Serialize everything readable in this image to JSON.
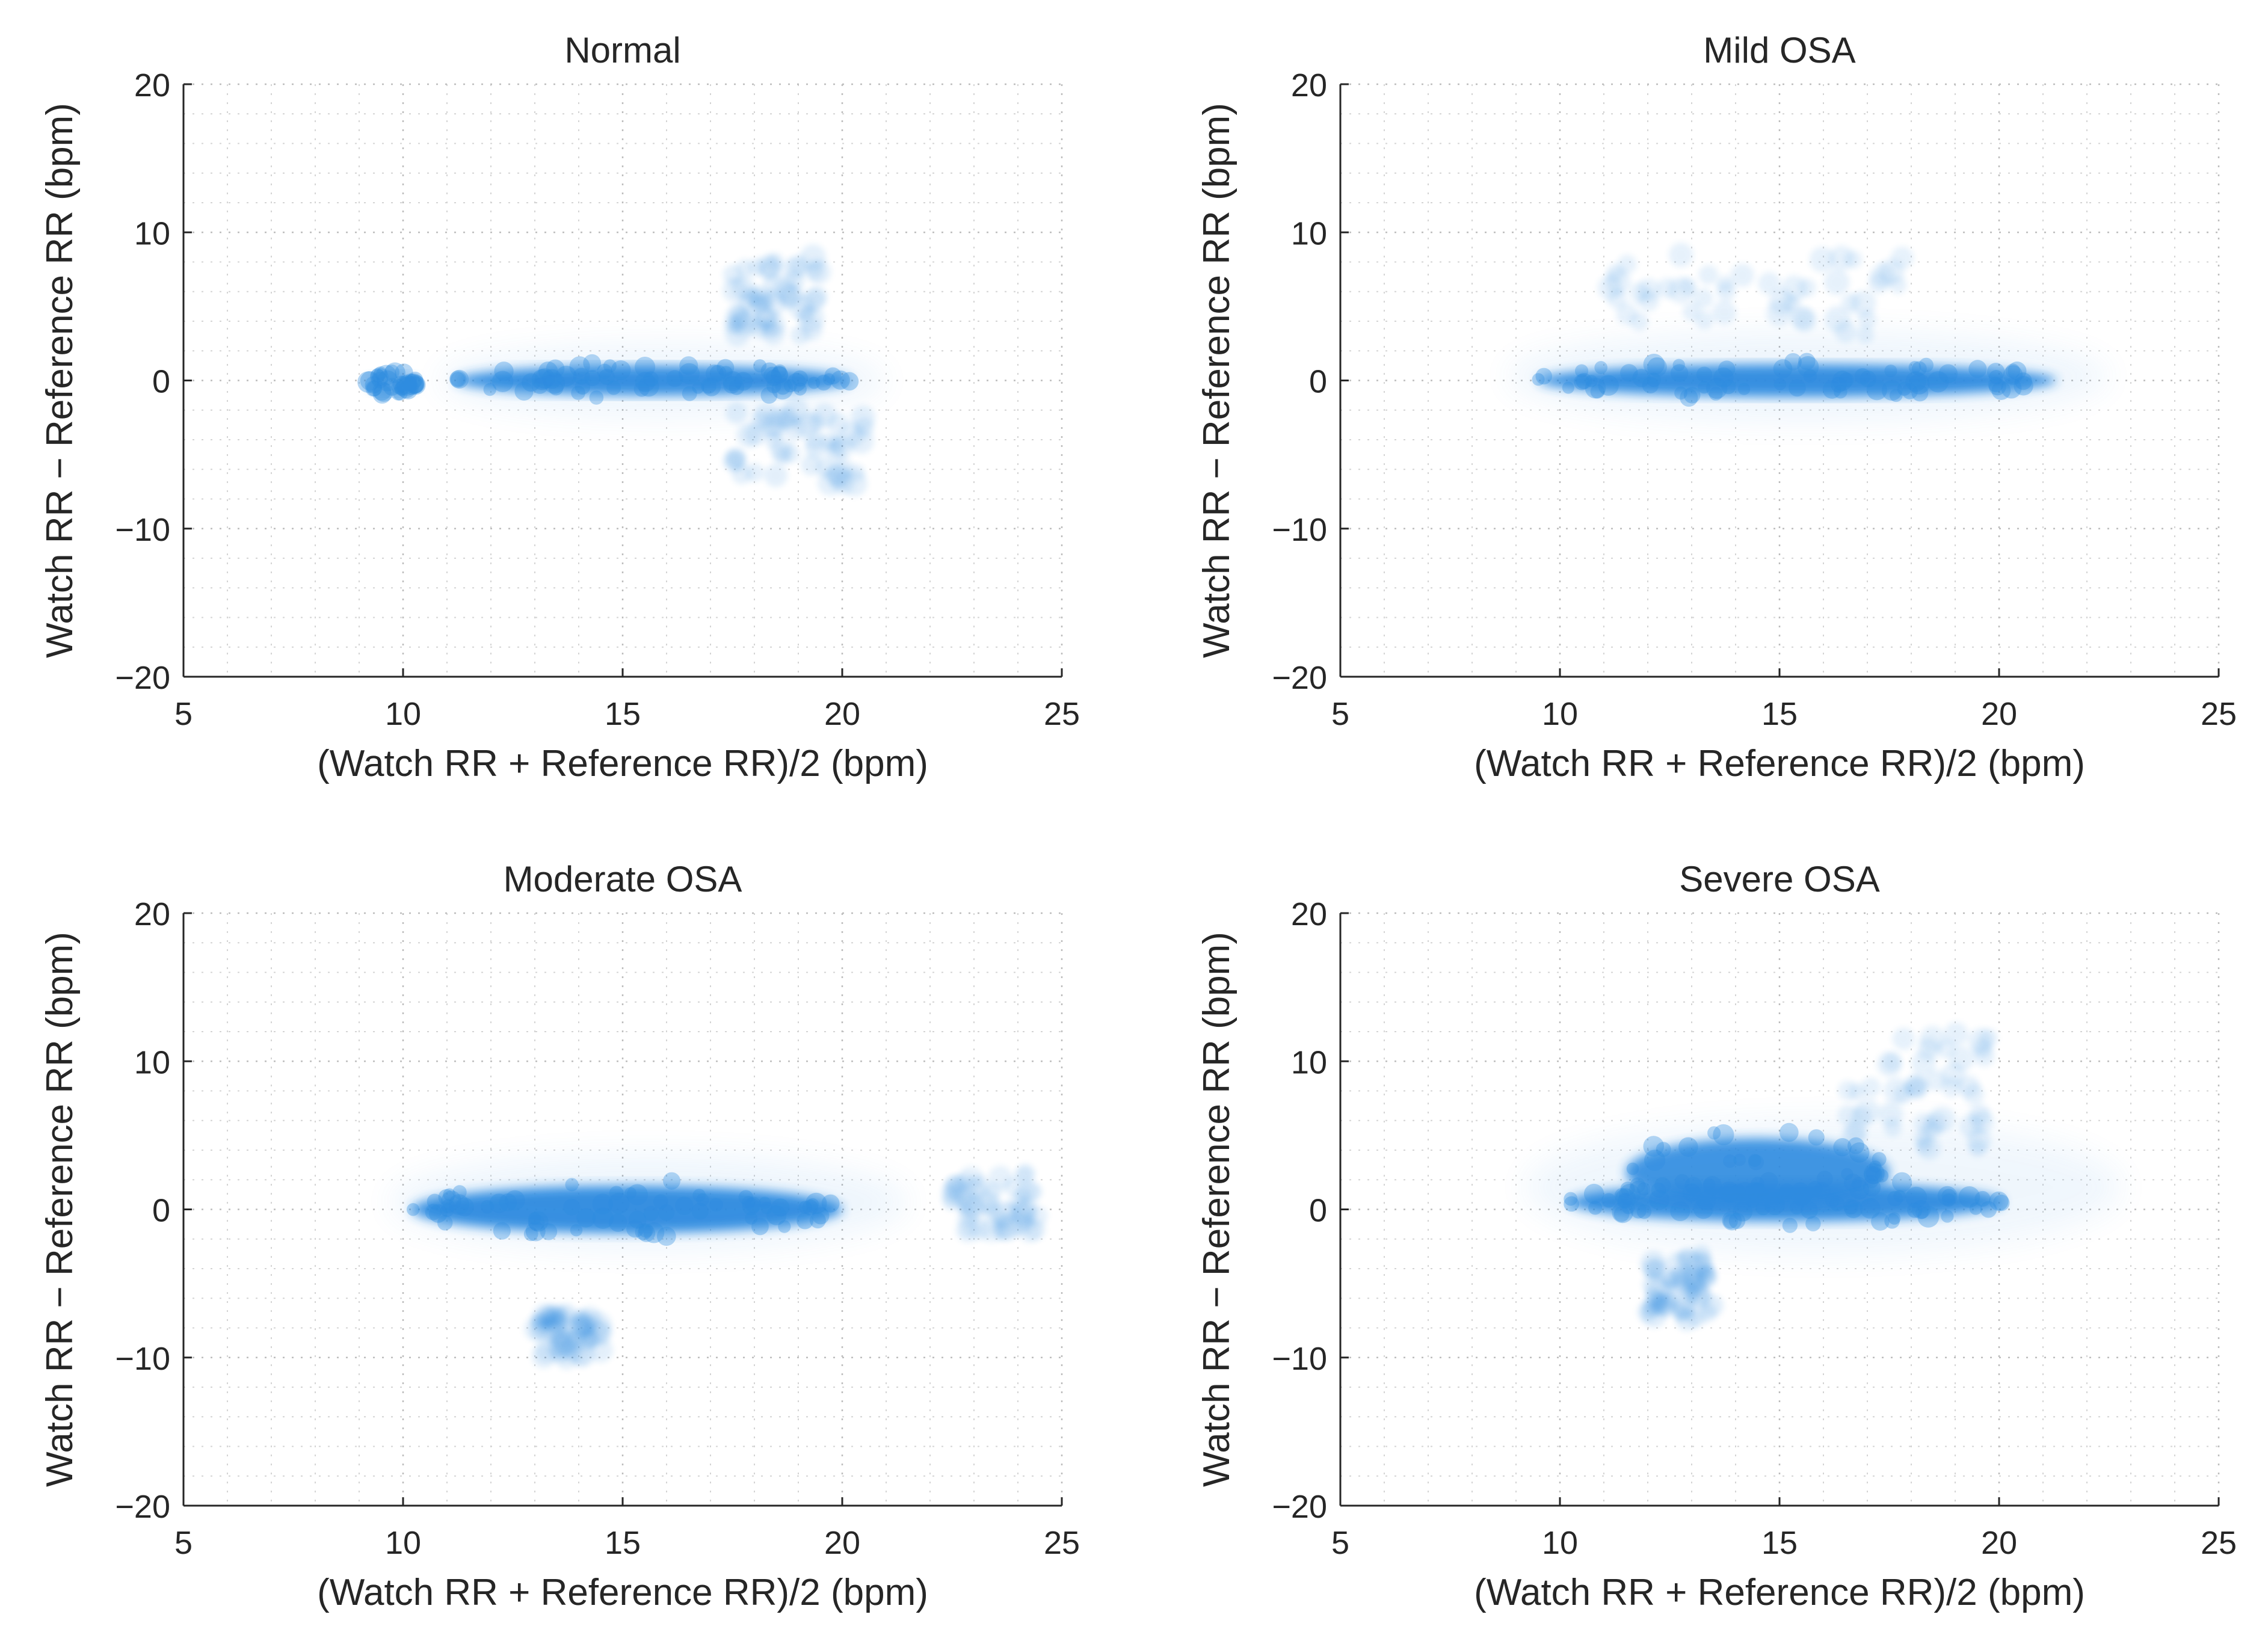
{
  "figure": {
    "colors": {
      "marker": "#2e8be0",
      "axis": "#262626",
      "grid": "#bdbdbd"
    }
  },
  "chart_data": [
    {
      "type": "scatter",
      "title": "Normal",
      "xlabel": "(Watch RR + Reference RR)/2 (bpm)",
      "ylabel": "Watch RR − Reference RR (bpm)",
      "xlim": [
        5,
        25
      ],
      "ylim": [
        -20,
        20
      ],
      "xticks": [
        5,
        10,
        15,
        20,
        25
      ],
      "yticks": [
        -20,
        -10,
        0,
        10,
        20
      ],
      "xtick_labels": [
        "5",
        "10",
        "15",
        "20",
        "25"
      ],
      "ytick_labels": [
        "−20",
        "−10",
        "0",
        "10",
        "20"
      ],
      "grid": true,
      "minor_grid": true,
      "series": [
        {
          "name": "core cloud",
          "kind": "dense",
          "x": [
            11.2,
            20.2
          ],
          "y_center": 0,
          "y_half_spread": 1.0,
          "opacity": 0.95
        },
        {
          "name": "halo",
          "kind": "halo",
          "x": [
            10.8,
            21
          ],
          "y_center": 0,
          "y_half_spread": 2.4,
          "opacity": 0.08
        },
        {
          "name": "low cluster",
          "kind": "cluster",
          "x": [
            9.2,
            10.3
          ],
          "y_center": -0.2,
          "y_half_spread": 0.7,
          "opacity": 0.5
        },
        {
          "name": "upper outliers",
          "kind": "scatter",
          "x": [
            17.5,
            19.5
          ],
          "y": [
            3,
            8.5
          ],
          "opacity": 0.08
        },
        {
          "name": "lower tail",
          "kind": "scatter",
          "x": [
            17.5,
            20.5
          ],
          "y": [
            -7,
            -2
          ],
          "opacity": 0.08
        }
      ]
    },
    {
      "type": "scatter",
      "title": "Mild OSA",
      "xlabel": "(Watch RR + Reference RR)/2 (bpm)",
      "ylabel": "Watch RR − Reference RR (bpm)",
      "xlim": [
        5,
        25
      ],
      "ylim": [
        -20,
        20
      ],
      "xticks": [
        5,
        10,
        15,
        20,
        25
      ],
      "yticks": [
        -20,
        -10,
        0,
        10,
        20
      ],
      "xtick_labels": [
        "5",
        "10",
        "15",
        "20",
        "25"
      ],
      "ytick_labels": [
        "−20",
        "−10",
        "0",
        "10",
        "20"
      ],
      "grid": true,
      "minor_grid": true,
      "series": [
        {
          "name": "core cloud",
          "kind": "dense",
          "x": [
            9.5,
            21.3
          ],
          "y_center": 0,
          "y_half_spread": 1.1,
          "opacity": 0.95
        },
        {
          "name": "halo",
          "kind": "halo",
          "x": [
            8.8,
            22.5
          ],
          "y_center": 0.3,
          "y_half_spread": 3.0,
          "opacity": 0.08
        },
        {
          "name": "upper outliers",
          "kind": "scatter",
          "x": [
            11,
            18
          ],
          "y": [
            3,
            8.5
          ],
          "opacity": 0.07
        }
      ]
    },
    {
      "type": "scatter",
      "title": "Moderate OSA",
      "xlabel": "(Watch RR + Reference RR)/2 (bpm)",
      "ylabel": "Watch RR − Reference RR (bpm)",
      "xlim": [
        5,
        25
      ],
      "ylim": [
        -20,
        20
      ],
      "xticks": [
        5,
        10,
        15,
        20,
        25
      ],
      "yticks": [
        -20,
        -10,
        0,
        10,
        20
      ],
      "xtick_labels": [
        "5",
        "10",
        "15",
        "20",
        "25"
      ],
      "ytick_labels": [
        "−20",
        "−10",
        "0",
        "10",
        "20"
      ],
      "grid": true,
      "minor_grid": true,
      "series": [
        {
          "name": "core cloud",
          "kind": "dense",
          "x": [
            10.2,
            20.0
          ],
          "y_center": 0,
          "y_half_spread": 1.6,
          "opacity": 0.95
        },
        {
          "name": "halo",
          "kind": "halo",
          "x": [
            9.7,
            21.5
          ],
          "y_center": 0.5,
          "y_half_spread": 3.2,
          "opacity": 0.08
        },
        {
          "name": "right outliers",
          "kind": "scatter",
          "x": [
            22.5,
            24.5
          ],
          "y": [
            -1.5,
            2.5
          ],
          "opacity": 0.07
        },
        {
          "name": "lower outliers",
          "kind": "scatter",
          "x": [
            13,
            14.5
          ],
          "y": [
            -10,
            -7
          ],
          "opacity": 0.08
        }
      ]
    },
    {
      "type": "scatter",
      "title": "Severe OSA",
      "xlabel": "(Watch RR + Reference RR)/2 (bpm)",
      "ylabel": "Watch RR − Reference RR (bpm)",
      "xlim": [
        5,
        25
      ],
      "ylim": [
        -20,
        20
      ],
      "xticks": [
        5,
        10,
        15,
        20,
        25
      ],
      "yticks": [
        -20,
        -10,
        0,
        10,
        20
      ],
      "xtick_labels": [
        "5",
        "10",
        "15",
        "20",
        "25"
      ],
      "ytick_labels": [
        "−20",
        "−10",
        "0",
        "10",
        "20"
      ],
      "grid": true,
      "minor_grid": true,
      "series": [
        {
          "name": "core cloud",
          "kind": "dense",
          "x": [
            10.2,
            20.1
          ],
          "y_center": 0.5,
          "y_half_spread": 1.3,
          "opacity": 0.95
        },
        {
          "name": "upper hump",
          "kind": "cluster",
          "x": [
            11.5,
            17.5
          ],
          "y_center": 2.5,
          "y_half_spread": 2.3,
          "opacity": 0.9
        },
        {
          "name": "halo",
          "kind": "halo",
          "x": [
            9.2,
            22.8
          ],
          "y_center": 1.5,
          "y_half_spread": 4.5,
          "opacity": 0.07
        },
        {
          "name": "upper outliers",
          "kind": "scatter",
          "x": [
            16.5,
            20
          ],
          "y": [
            4,
            12
          ],
          "opacity": 0.07
        },
        {
          "name": "lower tail",
          "kind": "scatter",
          "x": [
            12,
            13.5
          ],
          "y": [
            -7.5,
            -3
          ],
          "opacity": 0.09
        }
      ]
    }
  ]
}
